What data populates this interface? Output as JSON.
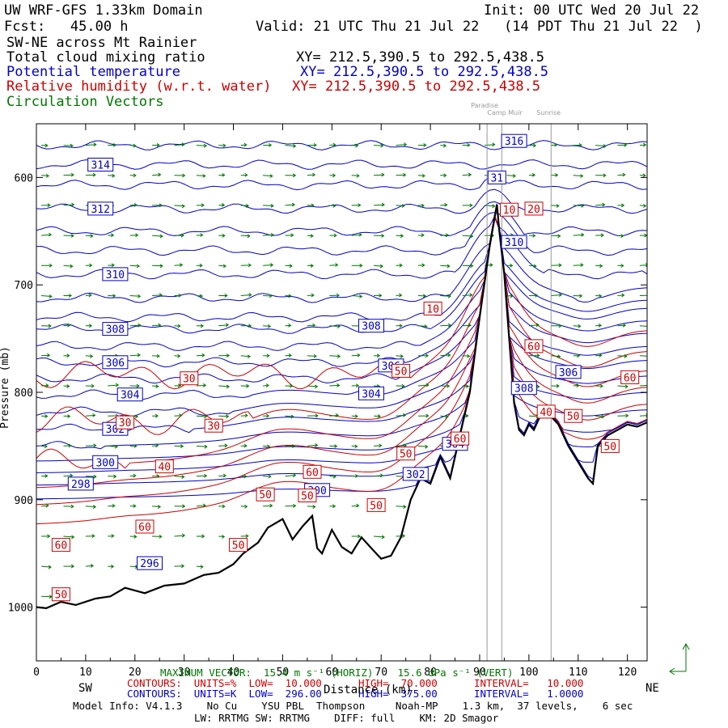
{
  "header": {
    "title": "UW WRF-GFS 1.33km Domain",
    "init": "Init: 00 UTC Wed 20 Jul 22",
    "fcst": "Fcst:   45.00 h",
    "valid": "Valid: 21 UTC Thu 21 Jul 22   (14 PDT Thu 21 Jul 22  )",
    "section": "SW-NE across Mt Rainier",
    "field1": "Total cloud mixing ratio",
    "field1_xy": "XY= 212.5,390.5 to 292.5,438.5",
    "field2": "Potential temperature",
    "field2_xy": "XY= 212.5,390.5 to 292.5,438.5",
    "field3": "Relative humidity (w.r.t. water)",
    "field3_xy": "XY= 212.5,390.5 to 292.5,438.5",
    "field4": "Circulation Vectors"
  },
  "colors": {
    "theta": "#0000cc",
    "rh": "#cc0000",
    "vectors": "#007700",
    "terrain": "#000000"
  },
  "landmarks": [
    {
      "name": "Paradise",
      "x": 91.5
    },
    {
      "name": "Camp Muir",
      "x": 94.5
    },
    {
      "name": "Sunrise",
      "x": 104.5
    }
  ],
  "chart_data": {
    "type": "cross-section",
    "xlabel": "Distance (km)",
    "ylabel": "Pressure (mb)",
    "xlim": [
      0,
      124
    ],
    "ylim": [
      1050,
      550
    ],
    "x_ticks": [
      0,
      10,
      20,
      30,
      40,
      50,
      60,
      70,
      80,
      90,
      100,
      110,
      120
    ],
    "x_tick_labels": [
      "0",
      "10",
      "20",
      "30",
      "40",
      "50",
      "60",
      "70",
      "80",
      "90",
      "100",
      "110",
      "120"
    ],
    "y_ticks": [
      600,
      700,
      800,
      900,
      1000
    ],
    "y_tick_labels": [
      "600",
      "700",
      "800",
      "900",
      "1000"
    ],
    "sw_label": "SW",
    "ne_label": "NE",
    "terrain": {
      "x": [
        0,
        2,
        5,
        8,
        12,
        15,
        18,
        22,
        26,
        30,
        34,
        37,
        40,
        42,
        45,
        47,
        50,
        52,
        54,
        56,
        57,
        58,
        60,
        62,
        64,
        66,
        68,
        70,
        72,
        74,
        76,
        78,
        80,
        82,
        84,
        86,
        88,
        90,
        92,
        93.5,
        94,
        95,
        96,
        97,
        98,
        99,
        100,
        101,
        102,
        103,
        104,
        106,
        108,
        110,
        112,
        113,
        114,
        116,
        118,
        120,
        122,
        124
      ],
      "p": [
        1000,
        1001,
        995,
        998,
        992,
        990,
        982,
        987,
        980,
        978,
        970,
        968,
        960,
        950,
        940,
        926,
        918,
        937,
        925,
        915,
        945,
        950,
        928,
        944,
        950,
        935,
        945,
        955,
        952,
        935,
        900,
        880,
        885,
        860,
        880,
        840,
        800,
        730,
        665,
        625,
        650,
        690,
        750,
        810,
        835,
        840,
        830,
        835,
        825,
        815,
        820,
        830,
        850,
        865,
        880,
        885,
        850,
        840,
        835,
        830,
        832,
        828
      ]
    },
    "theta": {
      "units": "K",
      "low": "296.00",
      "high": "375.00",
      "interval": "1.0000",
      "contour_labels": [
        {
          "text": "314",
          "x": 13,
          "p": 588
        },
        {
          "text": "312",
          "x": 13,
          "p": 629
        },
        {
          "text": "310",
          "x": 16,
          "p": 690
        },
        {
          "text": "308",
          "x": 16,
          "p": 741
        },
        {
          "text": "306",
          "x": 16,
          "p": 772
        },
        {
          "text": "304",
          "x": 19,
          "p": 802
        },
        {
          "text": "302",
          "x": 16,
          "p": 834
        },
        {
          "text": "300",
          "x": 14,
          "p": 865
        },
        {
          "text": "298",
          "x": 9,
          "p": 885
        },
        {
          "text": "296",
          "x": 23,
          "p": 959
        },
        {
          "text": "308",
          "x": 68,
          "p": 738
        },
        {
          "text": "306",
          "x": 72,
          "p": 775
        },
        {
          "text": "304",
          "x": 68,
          "p": 801
        },
        {
          "text": "304",
          "x": 85,
          "p": 848
        },
        {
          "text": "302",
          "x": 77,
          "p": 876
        },
        {
          "text": "300",
          "x": 57,
          "p": 891
        },
        {
          "text": "316",
          "x": 97,
          "p": 566
        },
        {
          "text": "31",
          "x": 93.5,
          "p": 600
        },
        {
          "text": "310",
          "x": 97,
          "p": 660
        },
        {
          "text": "308",
          "x": 99,
          "p": 796
        },
        {
          "text": "306",
          "x": 108,
          "p": 781
        }
      ]
    },
    "rh": {
      "units": "%",
      "low": "10.000",
      "high": "70.000",
      "interval": "10.000",
      "contour_labels": [
        {
          "text": "30",
          "x": 31,
          "p": 787
        },
        {
          "text": "30",
          "x": 18,
          "p": 828
        },
        {
          "text": "30",
          "x": 36,
          "p": 831
        },
        {
          "text": "40",
          "x": 26,
          "p": 869
        },
        {
          "text": "60",
          "x": 5,
          "p": 942
        },
        {
          "text": "50",
          "x": 5,
          "p": 988
        },
        {
          "text": "60",
          "x": 22,
          "p": 925
        },
        {
          "text": "50",
          "x": 41,
          "p": 942
        },
        {
          "text": "50",
          "x": 46.5,
          "p": 895
        },
        {
          "text": "60",
          "x": 56,
          "p": 874
        },
        {
          "text": "50",
          "x": 55,
          "p": 896
        },
        {
          "text": "50",
          "x": 69,
          "p": 905
        },
        {
          "text": "50",
          "x": 75,
          "p": 857
        },
        {
          "text": "50",
          "x": 74,
          "p": 780
        },
        {
          "text": "10",
          "x": 80.5,
          "p": 722
        },
        {
          "text": "60",
          "x": 86,
          "p": 843
        },
        {
          "text": "10",
          "x": 96,
          "p": 630
        },
        {
          "text": "20",
          "x": 101,
          "p": 629
        },
        {
          "text": "60",
          "x": 101,
          "p": 757
        },
        {
          "text": "40",
          "x": 103.5,
          "p": 818
        },
        {
          "text": "50",
          "x": 109,
          "p": 822
        },
        {
          "text": "60",
          "x": 120.5,
          "p": 786
        },
        {
          "text": "50",
          "x": 116.5,
          "p": 850
        }
      ]
    },
    "vectors": {
      "max_vector_text": "MAXIMUM VECTOR:  15.4 m s⁻¹ (HORIZ)    15.6 dPa s⁻¹ (VERT)"
    }
  },
  "footer": {
    "rh_contours": "CONTOURS:  UNITS=%  LOW=  10.000      HIGH=  70.000      INTERVAL=   10.000",
    "theta_contours": "CONTOURS:  UNITS=K  LOW=  296.00      HIGH=  375.00      INTERVAL=   1.0000",
    "model_info": "Model Info: V4.1.3    No Cu    YSU PBL  Thompson     Noah-MP    1.3 km,  37 levels,    6 sec",
    "model_info2": "LW: RRTMG SW: RRTMG    DIFF: full    KM: 2D Smagor"
  }
}
